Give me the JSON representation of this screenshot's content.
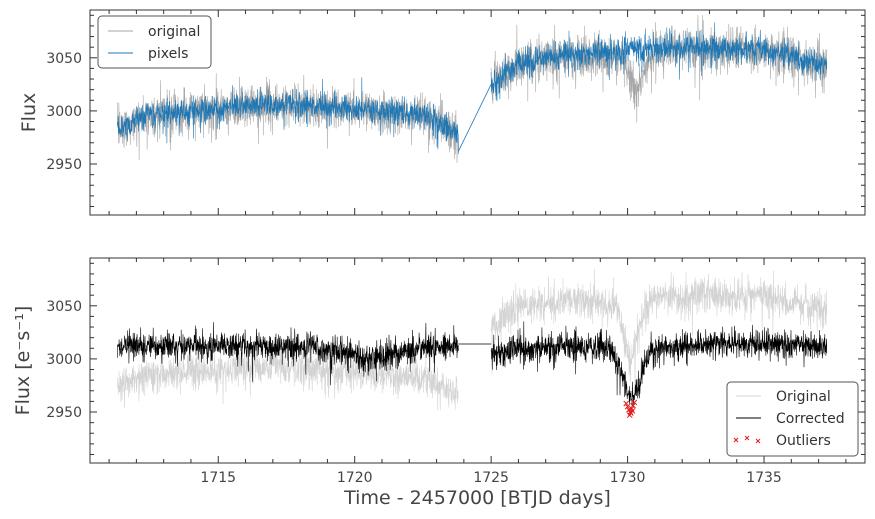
{
  "chart_data": [
    {
      "type": "line",
      "xlim": [
        1710.3,
        1738.7
      ],
      "ylim": [
        2902,
        3095
      ],
      "yticks": [
        2950,
        3000,
        3050
      ],
      "ylabel": "Flux",
      "xticks_labeled": false,
      "legend": {
        "placement": "top-left",
        "entries": [
          "original",
          "pixels"
        ]
      },
      "colors": {
        "original": "#a6a6a6",
        "pixels": "#1f77b4"
      },
      "series": [
        {
          "name": "original",
          "segments": [
            {
              "x": [
                1711.3,
                1712.5,
                1715,
                1717.5,
                1720,
                1722.5,
                1723.8
              ],
              "y": [
                2982,
                2996,
                3003,
                3006,
                3002,
                2996,
                2978
              ],
              "noise": 17
            },
            {
              "x": [
                1725.0,
                1726,
                1728,
                1729.8,
                1730.3,
                1731,
                1733,
                1735,
                1737.3
              ],
              "y": [
                3025,
                3045,
                3052,
                3050,
                3020,
                3055,
                3060,
                3057,
                3042
              ],
              "noise": 18
            }
          ]
        },
        {
          "name": "pixels",
          "segments": [
            {
              "x": [
                1711.3,
                1712.5,
                1715,
                1717.5,
                1720,
                1722.5,
                1723.8
              ],
              "y": [
                2982,
                2997,
                3003,
                3006,
                3002,
                2997,
                2978
              ],
              "noise": 11
            },
            {
              "x": [
                1725.0,
                1726,
                1728,
                1730,
                1732,
                1735,
                1737.3
              ],
              "y": [
                3025,
                3046,
                3054,
                3057,
                3060,
                3058,
                3043
              ],
              "noise": 12
            }
          ],
          "gap_connector": [
            [
              1723.8,
              2962
            ],
            [
              1725.0,
              3025
            ]
          ]
        }
      ]
    },
    {
      "type": "line",
      "xlim": [
        1710.3,
        1738.7
      ],
      "ylim": [
        2902,
        3095
      ],
      "xticks": [
        1715,
        1720,
        1725,
        1730,
        1735
      ],
      "yticks": [
        2950,
        3000,
        3050
      ],
      "xlabel": "Time - 2457000 [BTJD days]",
      "ylabel": "Flux [e⁻s⁻¹]",
      "legend": {
        "placement": "bottom-right",
        "entries": [
          "Original",
          "Corrected",
          "Outliers"
        ]
      },
      "colors": {
        "Original": "#d3d3d3",
        "Corrected": "#000000",
        "Outliers": "#e41a1c"
      },
      "series": [
        {
          "name": "Original",
          "segments": [
            {
              "x": [
                1711.3,
                1712.5,
                1715,
                1717.5,
                1720,
                1722.5,
                1723.8
              ],
              "y": [
                2975,
                2985,
                2990,
                2993,
                2988,
                2982,
                2968
              ],
              "noise": 15
            },
            {
              "x": [
                1725.0,
                1726,
                1728,
                1729.6,
                1730.1,
                1730.6,
                1731,
                1733,
                1735,
                1737.3
              ],
              "y": [
                3030,
                3050,
                3055,
                3050,
                2995,
                3045,
                3058,
                3060,
                3058,
                3045
              ],
              "noise": 15
            }
          ]
        },
        {
          "name": "Corrected",
          "segments": [
            {
              "x": [
                1711.3,
                1715,
                1718,
                1719.5,
                1720.5,
                1722,
                1723.8
              ],
              "y": [
                3012,
                3012,
                3012,
                3008,
                3000,
                3008,
                3012
              ],
              "noise": 12
            },
            {
              "x": [
                1725.0,
                1727,
                1729.4,
                1729.8,
                1730.1,
                1730.4,
                1730.8,
                1733,
                1735,
                1737.3
              ],
              "y": [
                3005,
                3012,
                3010,
                2985,
                2960,
                2975,
                3008,
                3014,
                3014,
                3012
              ],
              "noise": 12
            }
          ],
          "gap_connector": [
            [
              1723.8,
              3014
            ],
            [
              1725.0,
              3014
            ]
          ]
        },
        {
          "name": "Outliers",
          "marker": "x",
          "x": [
            1729.95,
            1730.0,
            1730.05,
            1730.1,
            1730.15,
            1730.2,
            1730.25,
            1730.08,
            1730.12,
            1730.18
          ],
          "y": [
            2958,
            2955,
            2952,
            2950,
            2953,
            2956,
            2959,
            2947,
            2949,
            2951
          ]
        }
      ]
    }
  ]
}
